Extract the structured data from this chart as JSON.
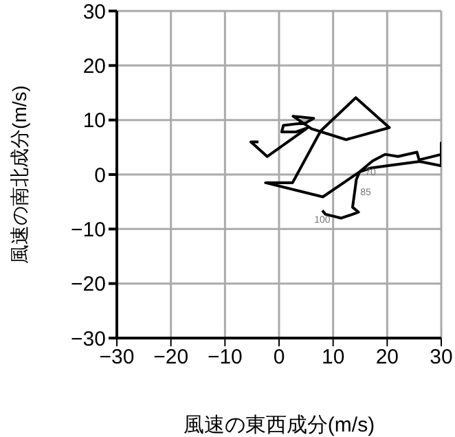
{
  "chart_data": {
    "type": "line",
    "xlabel": "風速の東西成分(m/s)",
    "ylabel": "風速の南北成分(m/s)",
    "xlim": [
      -30,
      30
    ],
    "xticks": [
      -30,
      -20,
      -10,
      0,
      10,
      20,
      30
    ],
    "ylim": [
      -30,
      30
    ],
    "yticks": [
      -30,
      -20,
      -10,
      0,
      10,
      20,
      30
    ],
    "grid": true,
    "marker": "none",
    "line_style": "solid",
    "series": [
      {
        "color": "#000000",
        "x": [
          8,
          8.6,
          11.5,
          13.6,
          14.7,
          13.6,
          14,
          14.3,
          14.9,
          17.3,
          19.6,
          22,
          25.5,
          25.9,
          28,
          30,
          30,
          30,
          26,
          20,
          17,
          14.9,
          8.1,
          -2.5,
          2.5,
          7.7,
          14.2,
          20.4,
          12.4,
          6,
          2.6,
          6.4,
          5,
          0.8,
          0.5,
          3.1,
          5.3,
          -2.2,
          -5.2,
          -3.8
        ],
        "values": [
          -6.6,
          -7.3,
          -8,
          -7.3,
          -6.9,
          -6,
          -3.1,
          -0.9,
          0.5,
          2.5,
          3.7,
          3.3,
          4.1,
          2.7,
          3.2,
          3.7,
          5.8,
          1.6,
          2.4,
          1.6,
          1.2,
          0.5,
          -4.1,
          -1.5,
          -1.5,
          8,
          14.1,
          8.6,
          6.4,
          8.4,
          10.7,
          10.3,
          9.5,
          9,
          7.8,
          7.8,
          8.6,
          3.3,
          6,
          6
        ]
      }
    ],
    "annotations": [
      {
        "text": "100",
        "x": 8,
        "y": -6.6
      },
      {
        "text": "85",
        "x": 14,
        "y": -3.1
      },
      {
        "text": "70",
        "x": 14.9,
        "y": 0.5
      }
    ]
  }
}
